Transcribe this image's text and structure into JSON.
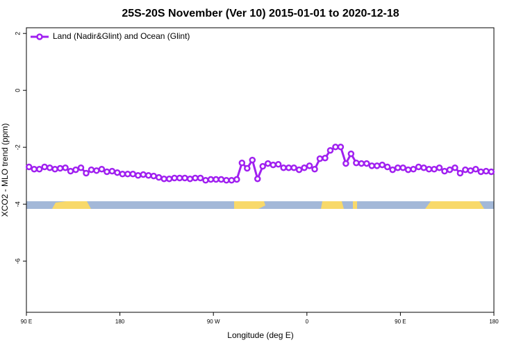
{
  "chart_data": {
    "type": "line",
    "title": "25S-20S November (Ver 10)   2015-01-01 to 2020-12-18",
    "x_label": "Longitude (deg E)",
    "y_label": "XCO2 - MLO trend (ppm)",
    "xlim": [
      90,
      540
    ],
    "ylim": [
      -7.8,
      2.2
    ],
    "xticks": [
      {
        "value": 90,
        "label": "90 E"
      },
      180,
      {
        "value": 270,
        "label": "90 W"
      },
      {
        "value": 360,
        "label": "0"
      },
      {
        "value": 450,
        "label": "90 E"
      },
      {
        "value": 540,
        "label": "180"
      }
    ],
    "yticks": [
      2,
      0,
      -2,
      -4,
      -6
    ],
    "legend": "top-left",
    "x": [
      92.5,
      97.5,
      102.5,
      107.5,
      112.5,
      117.5,
      122.5,
      127.5,
      132.5,
      137.5,
      142.5,
      147.5,
      152.5,
      157.5,
      162.5,
      167.5,
      172.5,
      177.5,
      182.5,
      187.5,
      192.5,
      197.5,
      202.5,
      207.5,
      212.5,
      217.5,
      222.5,
      227.5,
      232.5,
      237.5,
      242.5,
      247.5,
      252.5,
      257.5,
      262.5,
      267.5,
      272.5,
      277.5,
      282.5,
      287.5,
      292.5,
      297.5,
      302.5,
      307.5,
      312.5,
      317.5,
      322.5,
      327.5,
      332.5,
      337.5,
      342.5,
      347.5,
      352.5,
      357.5,
      362.5,
      367.5,
      372.5,
      377.5,
      382.5,
      387.5,
      392.5,
      397.5,
      402.5,
      407.5,
      412.5,
      417.5,
      422.5,
      427.5,
      432.5,
      437.5,
      442.5,
      447.5,
      452.5,
      457.5,
      462.5,
      467.5,
      472.5,
      477.5,
      482.5,
      487.5,
      492.5,
      497.5,
      502.5,
      507.5,
      512.5,
      517.5,
      522.5,
      527.5,
      532.5,
      537.5
    ],
    "series": [
      {
        "name": "Land (Nadir&Glint) and Ocean (Glint)",
        "color": "#a020f0",
        "values": [
          -2.69,
          -2.77,
          -2.77,
          -2.69,
          -2.72,
          -2.77,
          -2.74,
          -2.72,
          -2.84,
          -2.79,
          -2.72,
          -2.91,
          -2.79,
          -2.82,
          -2.77,
          -2.86,
          -2.84,
          -2.89,
          -2.94,
          -2.94,
          -2.94,
          -2.99,
          -2.96,
          -2.99,
          -3.01,
          -3.06,
          -3.11,
          -3.11,
          -3.08,
          -3.08,
          -3.08,
          -3.11,
          -3.08,
          -3.08,
          -3.16,
          -3.13,
          -3.13,
          -3.13,
          -3.16,
          -3.16,
          -3.13,
          -2.55,
          -2.74,
          -2.45,
          -3.11,
          -2.67,
          -2.57,
          -2.62,
          -2.6,
          -2.72,
          -2.72,
          -2.72,
          -2.79,
          -2.72,
          -2.65,
          -2.77,
          -2.4,
          -2.38,
          -2.11,
          -1.99,
          -1.99,
          -2.57,
          -2.23,
          -2.55,
          -2.57,
          -2.57,
          -2.65,
          -2.65,
          -2.62,
          -2.69,
          -2.79,
          -2.72,
          -2.72,
          -2.79,
          -2.77,
          -2.69,
          -2.72,
          -2.77,
          -2.77,
          -2.72,
          -2.84,
          -2.79,
          -2.72,
          -2.91,
          -2.79,
          -2.82,
          -2.77,
          -2.86,
          -2.84,
          -2.86
        ]
      }
    ]
  }
}
